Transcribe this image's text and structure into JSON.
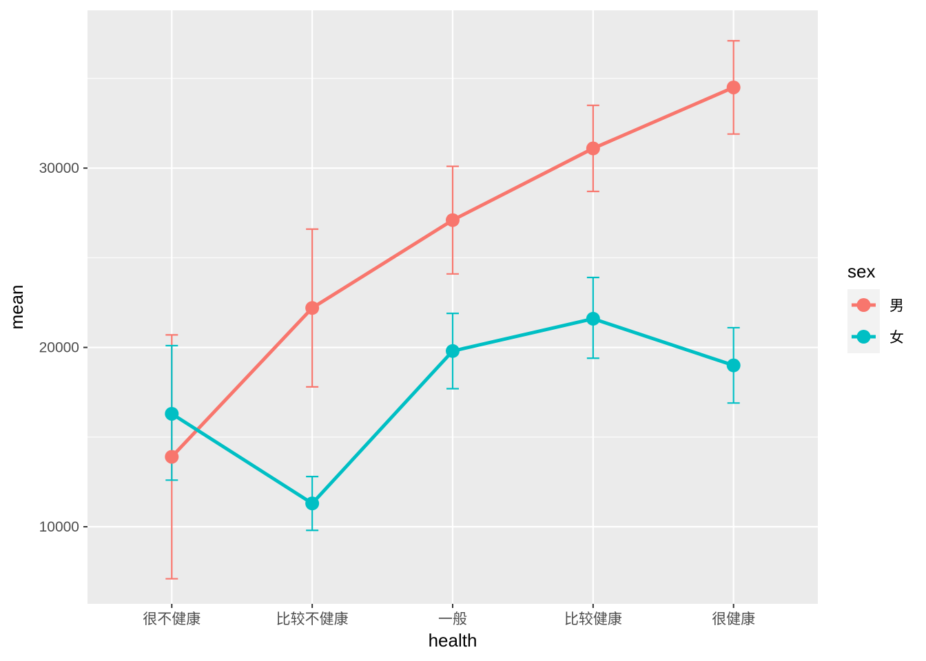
{
  "chart_data": {
    "type": "line",
    "xlabel": "health",
    "ylabel": "mean",
    "categories": [
      "很不健康",
      "比较不健康",
      "一般",
      "比较健康",
      "很健康"
    ],
    "y_ticks": [
      10000,
      20000,
      30000
    ],
    "y_tick_labels": [
      "10000",
      "20000",
      "30000"
    ],
    "ylim": [
      5700,
      38800
    ],
    "grid": true,
    "error_bars": true,
    "legend": {
      "title": "sex",
      "placement": "right"
    },
    "series": [
      {
        "name": "男",
        "color": "#F8766D",
        "values": [
          13900,
          22200,
          27100,
          31100,
          34500
        ],
        "lower": [
          7100,
          17800,
          24100,
          28700,
          31900
        ],
        "upper": [
          20700,
          26600,
          30100,
          33500,
          37100
        ]
      },
      {
        "name": "女",
        "color": "#00BFC4",
        "values": [
          16300,
          11300,
          19800,
          21600,
          19000
        ],
        "lower": [
          12600,
          9800,
          17700,
          19400,
          16900
        ],
        "upper": [
          20100,
          12800,
          21900,
          23900,
          21100
        ]
      }
    ]
  }
}
